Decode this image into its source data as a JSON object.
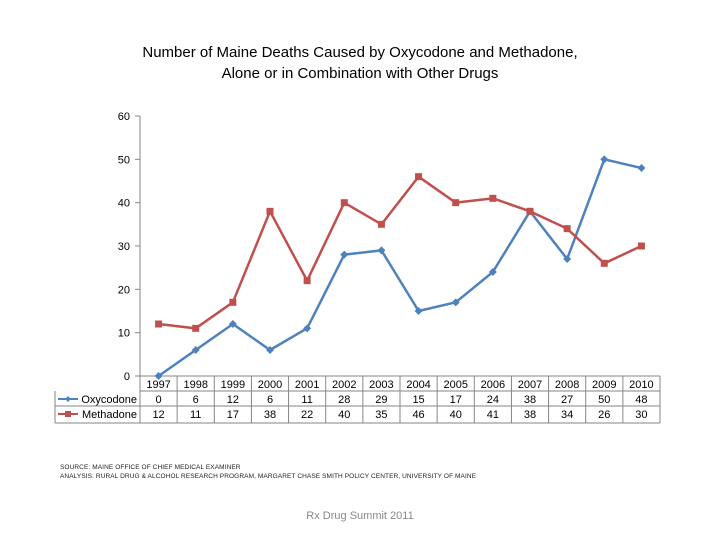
{
  "title_line1": "Number of Maine Deaths Caused by Oxycodone and Methadone,",
  "title_line2": "Alone or in Combination with Other Drugs",
  "source_line1": "SOURCE: MAINE OFFICE OF CHIEF MEDICAL EXAMINER",
  "source_line2": "ANALYSIS: RURAL DRUG & ALCOHOL RESEARCH PROGRAM, MARGARET CHASE SMITH POLICY CENTER, UNIVERSITY OF MAINE",
  "footer": "Rx Drug Summit 2011",
  "colors": {
    "oxycodone": "#4F81BD",
    "methadone": "#C0504D",
    "axis": "#868686"
  },
  "chart_data": {
    "type": "line",
    "title": "Number of Maine Deaths Caused by Oxycodone and Methadone, Alone or in Combination with Other Drugs",
    "xlabel": "",
    "ylabel": "",
    "ylim": [
      0,
      60
    ],
    "yticks": [
      0,
      10,
      20,
      30,
      40,
      50,
      60
    ],
    "grid": false,
    "legend": "data-table-left",
    "categories": [
      "1997",
      "1998",
      "1999",
      "2000",
      "2001",
      "2002",
      "2003",
      "2004",
      "2005",
      "2006",
      "2007",
      "2008",
      "2009",
      "2010"
    ],
    "series": [
      {
        "name": "Oxycodone",
        "marker": "diamond",
        "values": [
          0,
          6,
          12,
          6,
          11,
          28,
          29,
          15,
          17,
          24,
          38,
          27,
          50,
          48
        ]
      },
      {
        "name": "Methadone",
        "marker": "square",
        "values": [
          12,
          11,
          17,
          38,
          22,
          40,
          35,
          46,
          40,
          41,
          38,
          34,
          26,
          30
        ]
      }
    ]
  }
}
